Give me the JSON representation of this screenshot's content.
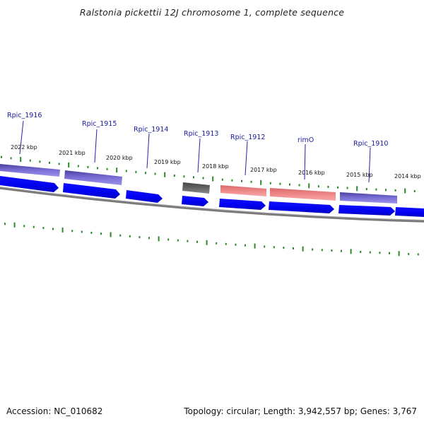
{
  "title": "Ralstonia pickettii 12J chromosome 1, complete sequence",
  "footer": {
    "accession": "Accession: NC_010682",
    "summary": "Topology: circular; Length: 3,942,557 bp; Genes: 3,767"
  },
  "scale_labels": [
    "2022 kbp",
    "2021 kbp",
    "2020 kbp",
    "2019 kbp",
    "2018 kbp",
    "2017 kbp",
    "2016 kbp",
    "2015 kbp",
    "2014 kbp"
  ],
  "gene_labels": [
    "Rpic_1916",
    "Rpic_1915",
    "Rpic_1914",
    "Rpic_1913",
    "Rpic_1912",
    "rimO",
    "Rpic_1910"
  ],
  "colors": {
    "cds": "#0000ee",
    "gene_purple": "#6a5acd",
    "gene_gray": "#555555",
    "gene_salmon": "#ee8080",
    "tick": "#2a8a2a",
    "backbone": "#808080",
    "label": "#1a1aa0"
  }
}
